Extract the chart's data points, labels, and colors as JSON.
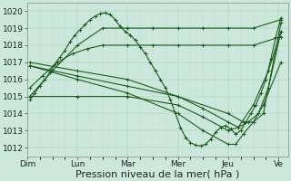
{
  "bg_color": "#cce8dc",
  "line_color": "#1a5c1a",
  "ylim": [
    1011.5,
    1020.5
  ],
  "yticks": [
    1012,
    1013,
    1014,
    1015,
    1016,
    1017,
    1018,
    1019,
    1020
  ],
  "xlim": [
    0,
    5.2
  ],
  "day_positions": [
    0.0,
    1.0,
    2.0,
    3.0,
    4.0,
    5.0
  ],
  "day_labels": [
    "Dim",
    "Lun",
    "Mar",
    "Mer",
    "Jeu",
    "Ve"
  ],
  "xlabel": "Pression niveau de la mer( hPa )",
  "xlabel_fontsize": 8,
  "tick_fontsize": 6.5,
  "lines": [
    {
      "x": [
        0.05,
        0.15,
        0.25,
        0.35,
        0.45,
        0.55,
        0.65,
        0.75,
        0.85,
        0.95,
        1.05,
        1.15,
        1.25,
        1.35,
        1.45,
        1.55,
        1.65,
        1.75,
        1.85,
        1.95,
        2.05,
        2.15,
        2.25,
        2.35,
        2.45,
        2.55,
        2.65,
        2.75,
        2.85,
        2.95,
        3.05,
        3.15,
        3.25,
        3.35,
        3.45,
        3.55,
        3.65,
        3.75,
        3.85,
        3.95,
        4.05,
        4.15,
        4.25,
        4.35,
        4.45,
        4.55,
        4.65,
        4.75,
        4.85,
        4.95,
        5.05
      ],
      "y": [
        1014.8,
        1015.2,
        1015.6,
        1016.0,
        1016.4,
        1016.9,
        1017.3,
        1017.7,
        1018.2,
        1018.6,
        1018.9,
        1019.2,
        1019.5,
        1019.7,
        1019.85,
        1019.9,
        1019.8,
        1019.5,
        1019.1,
        1018.8,
        1018.6,
        1018.3,
        1017.9,
        1017.5,
        1017.0,
        1016.5,
        1016.0,
        1015.5,
        1014.8,
        1014.0,
        1013.2,
        1012.6,
        1012.3,
        1012.15,
        1012.1,
        1012.2,
        1012.5,
        1012.9,
        1013.2,
        1013.3,
        1013.1,
        1012.8,
        1013.0,
        1013.5,
        1014.0,
        1014.5,
        1015.2,
        1016.0,
        1017.2,
        1018.5,
        1019.6
      ]
    },
    {
      "x": [
        0.05,
        0.5,
        1.0,
        1.5,
        2.0,
        2.5,
        3.0,
        3.5,
        4.0,
        4.5,
        5.05
      ],
      "y": [
        1015.0,
        1016.5,
        1018.0,
        1019.0,
        1019.0,
        1019.0,
        1019.0,
        1019.0,
        1019.0,
        1019.0,
        1019.5
      ]
    },
    {
      "x": [
        0.05,
        0.3,
        0.6,
        0.9,
        1.2,
        1.5,
        2.0,
        2.5,
        3.0,
        3.5,
        4.0,
        4.5,
        5.05
      ],
      "y": [
        1015.5,
        1016.2,
        1017.0,
        1017.5,
        1017.8,
        1018.0,
        1018.0,
        1018.0,
        1018.0,
        1018.0,
        1018.0,
        1018.0,
        1018.5
      ]
    },
    {
      "x": [
        0.05,
        1.0,
        2.0,
        3.0,
        4.0,
        4.3,
        4.5,
        4.7,
        5.05
      ],
      "y": [
        1016.8,
        1016.2,
        1015.6,
        1015.0,
        1014.0,
        1013.5,
        1013.5,
        1014.0,
        1019.3
      ]
    },
    {
      "x": [
        0.05,
        1.0,
        2.0,
        3.0,
        3.5,
        4.0,
        4.2,
        4.4,
        4.6,
        4.8,
        5.05
      ],
      "y": [
        1017.0,
        1016.5,
        1016.0,
        1015.0,
        1014.3,
        1013.5,
        1013.2,
        1013.5,
        1014.0,
        1015.5,
        1018.8
      ]
    },
    {
      "x": [
        0.05,
        1.0,
        2.0,
        3.0,
        3.5,
        4.0,
        4.15,
        4.3,
        4.5,
        4.7,
        5.05
      ],
      "y": [
        1016.8,
        1016.0,
        1015.2,
        1014.0,
        1013.0,
        1012.2,
        1012.2,
        1012.8,
        1013.5,
        1014.5,
        1017.0
      ]
    },
    {
      "x": [
        0.05,
        1.0,
        2.0,
        3.0,
        3.5,
        4.0,
        4.2,
        4.5,
        4.8,
        5.05
      ],
      "y": [
        1015.0,
        1015.0,
        1015.0,
        1014.5,
        1013.8,
        1013.0,
        1013.2,
        1014.5,
        1016.5,
        1018.8
      ]
    }
  ]
}
